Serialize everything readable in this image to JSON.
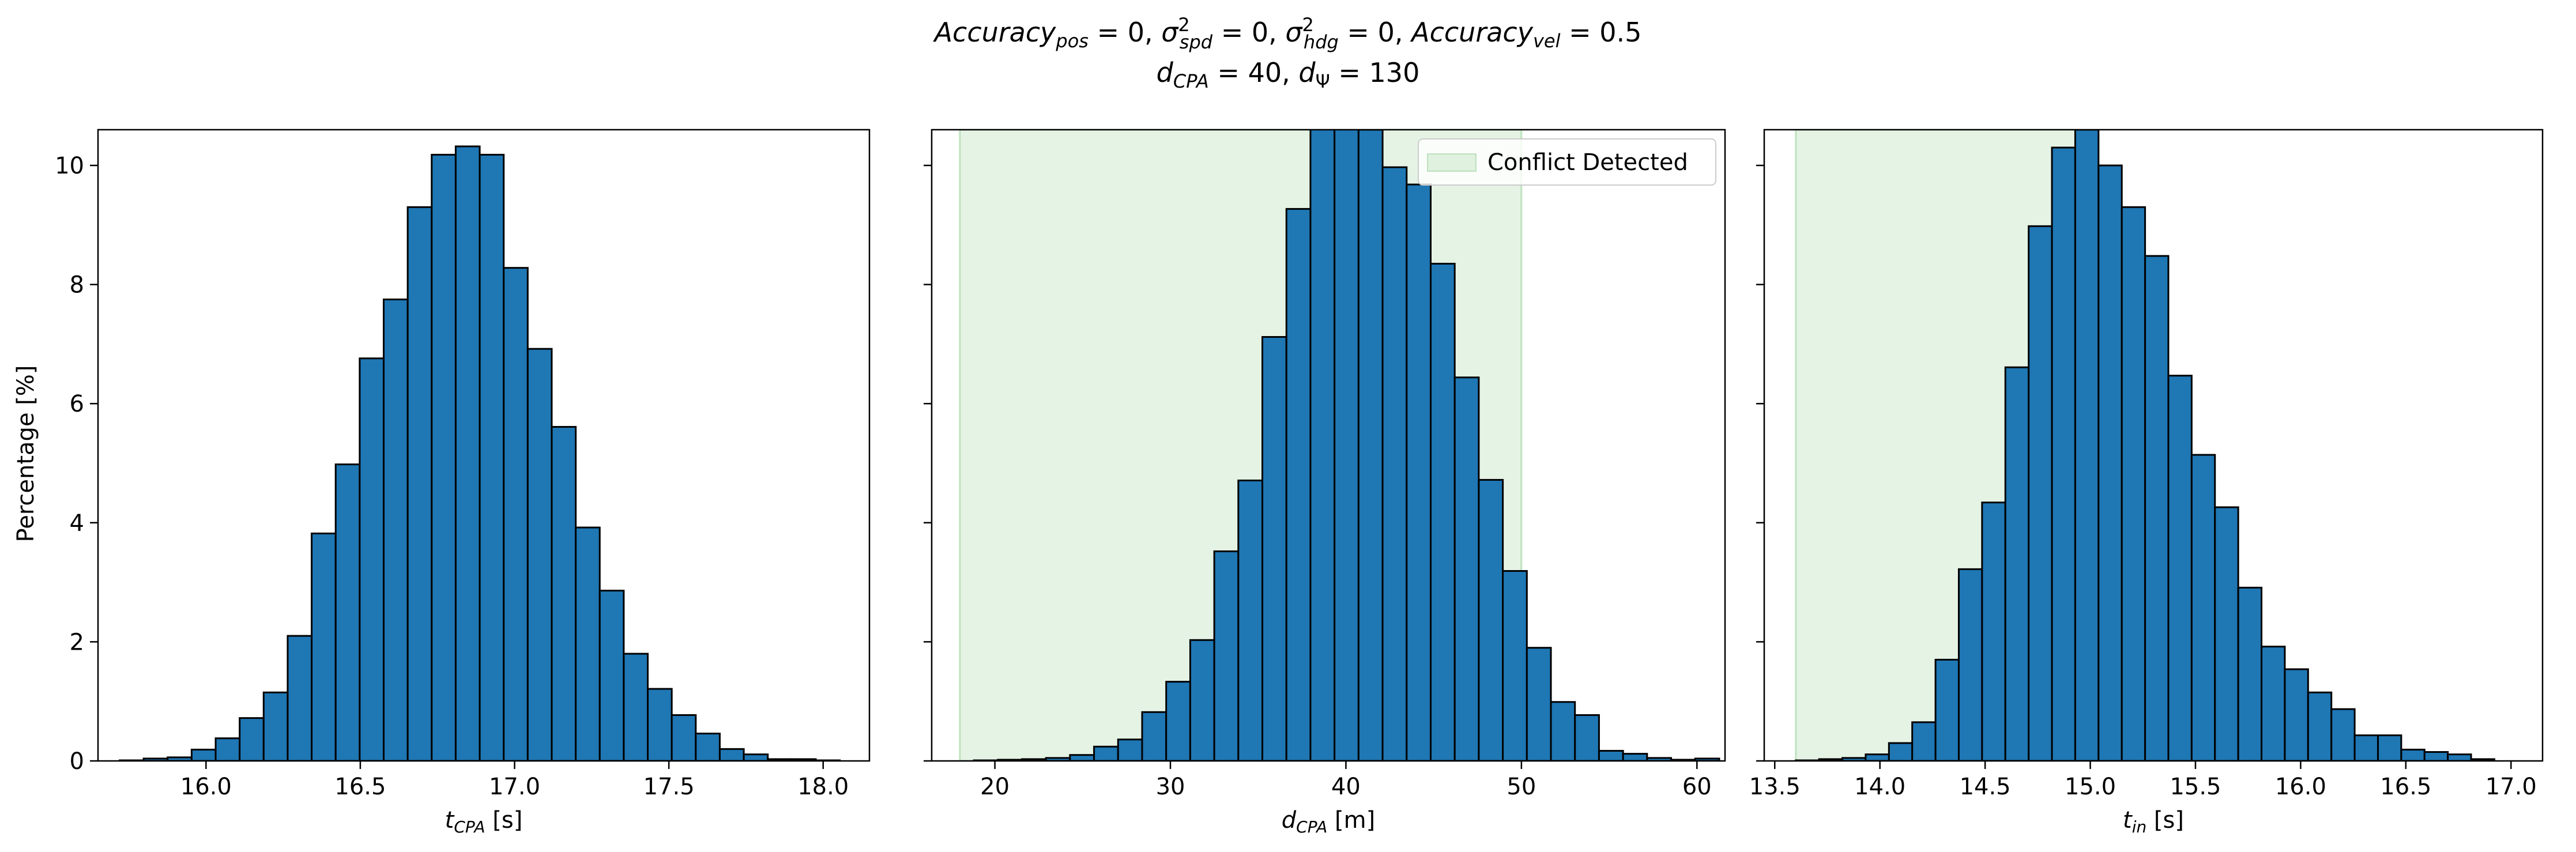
{
  "title": {
    "line1": {
      "parts": [
        {
          "t": "Accuracy",
          "style": "italic"
        },
        {
          "t": "pos",
          "style": "italic-sub"
        },
        {
          "t": " = 0, ",
          "style": "normal"
        },
        {
          "t": "σ",
          "style": "italic"
        },
        {
          "t": "2",
          "style": "sup"
        },
        {
          "t": "spd",
          "style": "italic-sub-kern"
        },
        {
          "t": " = 0, ",
          "style": "normal"
        },
        {
          "t": "σ",
          "style": "italic"
        },
        {
          "t": "2",
          "style": "sup"
        },
        {
          "t": "hdg",
          "style": "italic-sub-kern"
        },
        {
          "t": " = 0, ",
          "style": "normal"
        },
        {
          "t": "Accuracy",
          "style": "italic"
        },
        {
          "t": "vel",
          "style": "italic-sub"
        },
        {
          "t": " = 0.5",
          "style": "normal"
        }
      ]
    },
    "line2": {
      "parts": [
        {
          "t": "d",
          "style": "italic"
        },
        {
          "t": "CPA",
          "style": "italic-sub"
        },
        {
          "t": " = 40, ",
          "style": "normal"
        },
        {
          "t": "d",
          "style": "italic"
        },
        {
          "t": "Ψ",
          "style": "sub"
        },
        {
          "t": " = 130",
          "style": "normal"
        }
      ]
    }
  },
  "ylabel": "Percentage [%]",
  "colors": {
    "bar_fill": "#1f77b4",
    "bar_edge": "#000000",
    "shade": "#2ca02c",
    "shade_opacity": 0.12
  },
  "legend": {
    "label": "Conflict Detected",
    "placement": "upper right",
    "panel": 1
  },
  "chart_data": [
    {
      "type": "bar",
      "xlabel": {
        "main": "t",
        "sub": "CPA",
        "unit": " [s]"
      },
      "xlim": [
        15.65,
        18.15
      ],
      "ylim": [
        0,
        10.6
      ],
      "xticks": [
        "16.0",
        "16.5",
        "17.0",
        "17.5",
        "18.0"
      ],
      "yticks": [
        "0",
        "2",
        "4",
        "6",
        "8",
        "10"
      ],
      "bin_start": 15.72,
      "bin_width": 0.0778,
      "values": [
        0.01,
        0.04,
        0.06,
        0.19,
        0.38,
        0.72,
        1.15,
        2.1,
        3.82,
        4.98,
        6.76,
        7.75,
        9.3,
        10.18,
        10.32,
        10.18,
        8.28,
        6.92,
        5.61,
        3.92,
        2.86,
        1.8,
        1.21,
        0.77,
        0.46,
        0.2,
        0.11,
        0.03,
        0.03,
        0.01
      ],
      "shade": null
    },
    {
      "type": "bar",
      "xlabel": {
        "main": "d",
        "sub": "CPA",
        "unit": " [m]"
      },
      "xlim": [
        16.4,
        61.6
      ],
      "ylim": [
        0,
        10.6
      ],
      "xticks": [
        "20",
        "30",
        "40",
        "50",
        "60"
      ],
      "yticks": [
        "0",
        "2",
        "4",
        "6",
        "8",
        "10"
      ],
      "bin_start": 18.8,
      "bin_width": 1.37,
      "values": [
        0.01,
        0.02,
        0.03,
        0.05,
        0.1,
        0.24,
        0.36,
        0.82,
        1.33,
        2.03,
        3.52,
        4.71,
        7.12,
        9.27,
        10.7,
        10.7,
        10.6,
        9.97,
        9.68,
        8.35,
        6.44,
        4.72,
        3.19,
        1.9,
        0.99,
        0.77,
        0.17,
        0.12,
        0.05,
        0.02,
        0.04
      ],
      "shade": [
        18,
        50
      ]
    },
    {
      "type": "bar",
      "xlabel": {
        "main": "t",
        "sub": "in",
        "unit": " [s]"
      },
      "xlim": [
        13.45,
        17.15
      ],
      "ylim": [
        0,
        10.6
      ],
      "xticks": [
        "13.5",
        "14.0",
        "14.5",
        "15.0",
        "15.5",
        "16.0",
        "16.5",
        "17.0"
      ],
      "yticks": [
        "0",
        "2",
        "4",
        "6",
        "8",
        "10"
      ],
      "bin_start": 13.6,
      "bin_width": 0.1107,
      "values": [
        0.01,
        0.03,
        0.05,
        0.11,
        0.3,
        0.65,
        1.7,
        3.22,
        4.34,
        6.61,
        8.98,
        10.3,
        10.6,
        10.0,
        9.3,
        8.48,
        6.47,
        5.14,
        4.26,
        2.91,
        1.92,
        1.54,
        1.15,
        0.87,
        0.43,
        0.43,
        0.19,
        0.15,
        0.11,
        0.03
      ],
      "shade": [
        13.6,
        15.0
      ]
    }
  ]
}
